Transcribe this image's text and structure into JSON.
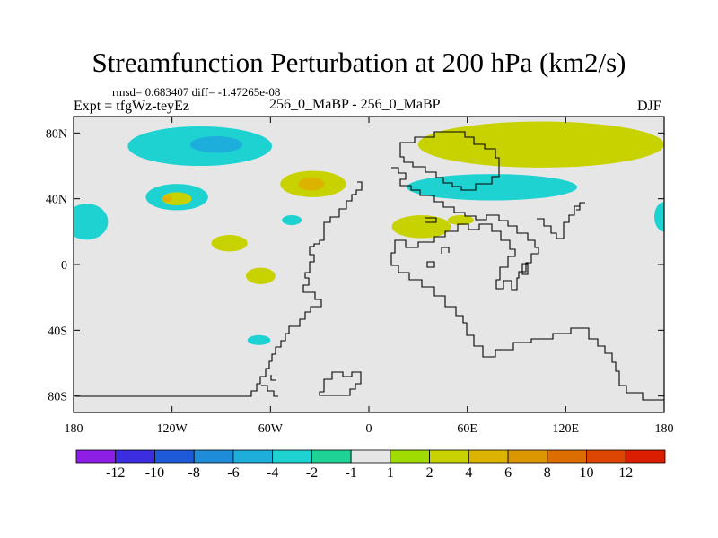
{
  "chart_data": {
    "type": "heatmap",
    "title": "Streamfunction Perturbation at 200 hPa (km2/s)",
    "stats_text": "rmsd= 0.683407 diff= -1.47265e-08",
    "subtitle": "256_0_MaBP - 256_0_MaBP",
    "left_label": "Expt = tfgWz-teyEz",
    "right_label": "DJF",
    "x_ticks": [
      {
        "value": -180,
        "label": "180"
      },
      {
        "value": -120,
        "label": "120W"
      },
      {
        "value": -60,
        "label": "60W"
      },
      {
        "value": 0,
        "label": "0"
      },
      {
        "value": 60,
        "label": "60E"
      },
      {
        "value": 120,
        "label": "120E"
      },
      {
        "value": 180,
        "label": "180"
      }
    ],
    "y_ticks": [
      {
        "value": 80,
        "label": "80N"
      },
      {
        "value": 40,
        "label": "40N"
      },
      {
        "value": 0,
        "label": "0"
      },
      {
        "value": -40,
        "label": "40S"
      },
      {
        "value": -80,
        "label": "80S"
      }
    ],
    "xlim": [
      -180,
      180
    ],
    "ylim": [
      -90,
      90
    ],
    "colorbar": {
      "colors": [
        "#8c1ee6",
        "#3c2ee0",
        "#1e5ad8",
        "#1e8cd8",
        "#1eaedc",
        "#1ed2d2",
        "#1ed296",
        "#e6e6e6",
        "#a0dc00",
        "#c8d200",
        "#dcb400",
        "#dc9600",
        "#dc6e00",
        "#dc4600",
        "#dc1e00"
      ],
      "labels": [
        "-12",
        "-10",
        "-8",
        "-6",
        "-4",
        "-2",
        "-1",
        "1",
        "2",
        "4",
        "6",
        "8",
        "10",
        "12"
      ]
    },
    "anomalies": [
      {
        "lon": -103,
        "lat": 72,
        "rlon": 44,
        "rlat": 12,
        "level": "-2"
      },
      {
        "lon": -93,
        "lat": 73,
        "rlon": 16,
        "rlat": 5,
        "level": "-4"
      },
      {
        "lon": -117,
        "lat": 41,
        "rlon": 19,
        "rlat": 8,
        "level": "-2"
      },
      {
        "lon": -117,
        "lat": 40,
        "rlon": 9,
        "rlat": 4,
        "level": "2"
      },
      {
        "lon": -123,
        "lat": 40,
        "rlon": 3,
        "rlat": 2,
        "level": "4"
      },
      {
        "lon": -172,
        "lat": 26,
        "rlon": 13,
        "rlat": 11,
        "level": "-2"
      },
      {
        "lon": -34,
        "lat": 49,
        "rlon": 20,
        "rlat": 8,
        "level": "2"
      },
      {
        "lon": -35,
        "lat": 49,
        "rlon": 8,
        "rlat": 4,
        "level": "4"
      },
      {
        "lon": -85,
        "lat": 13,
        "rlon": 11,
        "rlat": 5,
        "level": "2"
      },
      {
        "lon": -47,
        "lat": 27,
        "rlon": 6,
        "rlat": 3,
        "level": "-2"
      },
      {
        "lon": -66,
        "lat": -7,
        "rlon": 9,
        "rlat": 5,
        "level": "2"
      },
      {
        "lon": -67,
        "lat": -46,
        "rlon": 7,
        "rlat": 3,
        "level": "-2"
      },
      {
        "lon": 105,
        "lat": 73,
        "rlon": 75,
        "rlat": 14,
        "level": "2"
      },
      {
        "lon": 75,
        "lat": 47,
        "rlon": 52,
        "rlat": 8,
        "level": "-2"
      },
      {
        "lon": 32,
        "lat": 23,
        "rlon": 18,
        "rlat": 7,
        "level": "2"
      },
      {
        "lon": 56,
        "lat": 27,
        "rlon": 8,
        "rlat": 3,
        "level": "2"
      },
      {
        "lon": 180,
        "lat": 29,
        "rlon": 6,
        "rlat": 9,
        "level": "-2"
      }
    ]
  }
}
